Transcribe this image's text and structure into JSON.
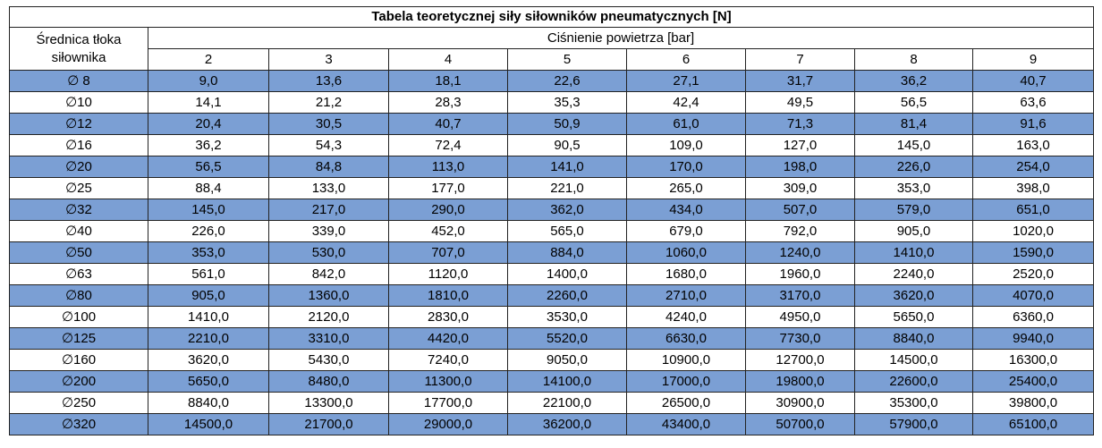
{
  "table": {
    "title": "Tabela teoretycznej siły siłowników pneumatycznych [N]",
    "row_header": "Średnica tłoka siłownika",
    "group_header": "Ciśnienie powietrza [bar]",
    "columns": [
      "2",
      "3",
      "4",
      "5",
      "6",
      "7",
      "8",
      "9"
    ],
    "rows": [
      [
        "∅ 8",
        "9,0",
        "13,6",
        "18,1",
        "22,6",
        "27,1",
        "31,7",
        "36,2",
        "40,7"
      ],
      [
        "∅10",
        "14,1",
        "21,2",
        "28,3",
        "35,3",
        "42,4",
        "49,5",
        "56,5",
        "63,6"
      ],
      [
        "∅12",
        "20,4",
        "30,5",
        "40,7",
        "50,9",
        "61,0",
        "71,3",
        "81,4",
        "91,6"
      ],
      [
        "∅16",
        "36,2",
        "54,3",
        "72,4",
        "90,5",
        "109,0",
        "127,0",
        "145,0",
        "163,0"
      ],
      [
        "∅20",
        "56,5",
        "84,8",
        "113,0",
        "141,0",
        "170,0",
        "198,0",
        "226,0",
        "254,0"
      ],
      [
        "∅25",
        "88,4",
        "133,0",
        "177,0",
        "221,0",
        "265,0",
        "309,0",
        "353,0",
        "398,0"
      ],
      [
        "∅32",
        "145,0",
        "217,0",
        "290,0",
        "362,0",
        "434,0",
        "507,0",
        "579,0",
        "651,0"
      ],
      [
        "∅40",
        "226,0",
        "339,0",
        "452,0",
        "565,0",
        "679,0",
        "792,0",
        "905,0",
        "1020,0"
      ],
      [
        "∅50",
        "353,0",
        "530,0",
        "707,0",
        "884,0",
        "1060,0",
        "1240,0",
        "1410,0",
        "1590,0"
      ],
      [
        "∅63",
        "561,0",
        "842,0",
        "1120,0",
        "1400,0",
        "1680,0",
        "1960,0",
        "2240,0",
        "2520,0"
      ],
      [
        "∅80",
        "905,0",
        "1360,0",
        "1810,0",
        "2260,0",
        "2710,0",
        "3170,0",
        "3620,0",
        "4070,0"
      ],
      [
        "∅100",
        "1410,0",
        "2120,0",
        "2830,0",
        "3530,0",
        "4240,0",
        "4950,0",
        "5650,0",
        "6360,0"
      ],
      [
        "∅125",
        "2210,0",
        "3310,0",
        "4420,0",
        "5520,0",
        "6630,0",
        "7730,0",
        "8840,0",
        "9940,0"
      ],
      [
        "∅160",
        "3620,0",
        "5430,0",
        "7240,0",
        "9050,0",
        "10900,0",
        "12700,0",
        "14500,0",
        "16300,0"
      ],
      [
        "∅200",
        "5650,0",
        "8480,0",
        "11300,0",
        "14100,0",
        "17000,0",
        "19800,0",
        "22600,0",
        "25400,0"
      ],
      [
        "∅250",
        "8840,0",
        "13300,0",
        "17700,0",
        "22100,0",
        "26500,0",
        "30900,0",
        "35300,0",
        "39800,0"
      ],
      [
        "∅320",
        "14500,0",
        "21700,0",
        "29000,0",
        "36200,0",
        "43400,0",
        "50700,0",
        "57900,0",
        "65100,0"
      ]
    ]
  }
}
